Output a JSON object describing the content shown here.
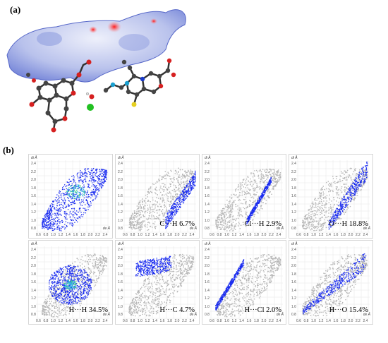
{
  "figure": {
    "label_a": "(a)",
    "label_b": "(b)"
  },
  "plots": [
    {
      "caption": "",
      "type": "full"
    },
    {
      "caption": "C···H  6.7%",
      "type": "partial"
    },
    {
      "caption": "Cl···H  2.9%",
      "type": "partial"
    },
    {
      "caption": "O···H  18.8%",
      "type": "partial"
    },
    {
      "caption": "H···H  34.5%",
      "type": "partial"
    },
    {
      "caption": "H···C  4.7%",
      "type": "partial"
    },
    {
      "caption": "H···Cl  2.0%",
      "type": "partial"
    },
    {
      "caption": "H···O  15.4%",
      "type": "partial"
    }
  ],
  "axes": {
    "yticks": [
      "2.4",
      "2.2",
      "2.0",
      "1.8",
      "1.6",
      "1.4",
      "1.2",
      "1.0",
      "0.8"
    ],
    "xticks": [
      "0.6",
      "0.8",
      "1.0",
      "1.2",
      "1.4",
      "1.6",
      "1.8",
      "2.0",
      "2.2",
      "2.4"
    ],
    "di_label": "di Å",
    "de_label": "de Å"
  },
  "colors": {
    "grey_cloud": "#b5b5b5",
    "blue": "#1a2cf0",
    "green": "#3fd37a",
    "surface_blue": "#7f8fd8",
    "surface_red": "#e23030"
  }
}
